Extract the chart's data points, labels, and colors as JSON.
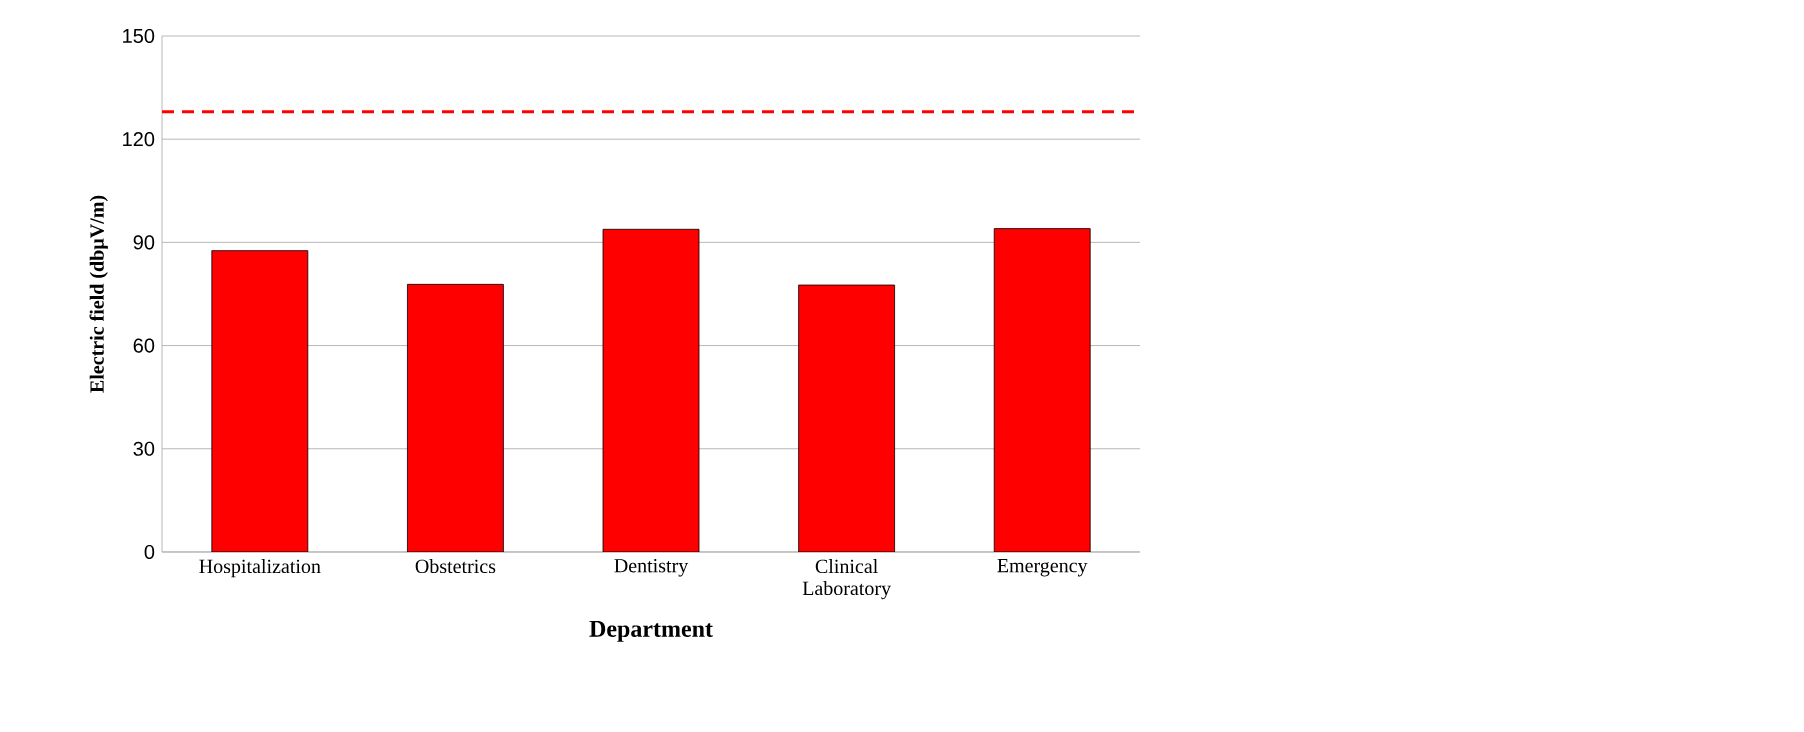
{
  "chart_data": {
    "type": "bar",
    "xlabel": "Department",
    "ylabel": "Electric field (dbµV/m)",
    "categories": [
      "Hospitalization",
      "Obstetrics",
      "Dentistry",
      "Clinical Laboratory",
      "Emergency"
    ],
    "values": [
      87.6,
      77.8,
      93.8,
      77.6,
      94
    ],
    "color": "#ff0000",
    "ylim": [
      0,
      150
    ],
    "yticks": [
      0,
      30,
      60,
      90,
      120,
      150
    ],
    "grid": "y",
    "ref_lines": [
      {
        "axis": "y",
        "value": 128,
        "color": "#ff0000",
        "line_style": "dashed"
      }
    ]
  }
}
